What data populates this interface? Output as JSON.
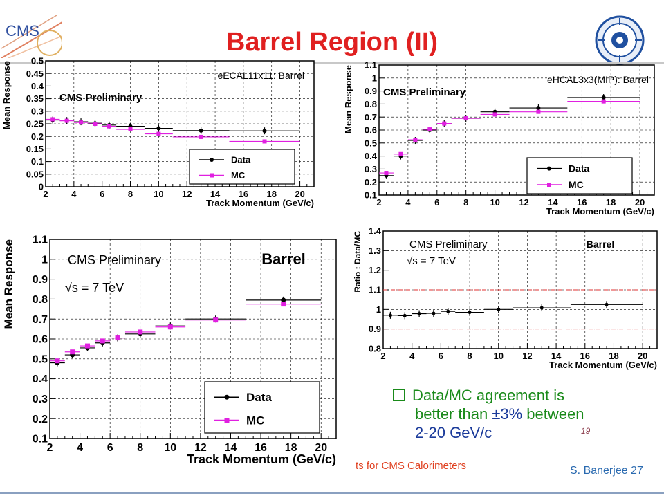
{
  "slide": {
    "title": "Barrel Region (II)",
    "logo_left_text": "CMS",
    "bullet": {
      "line1": "Data/MC agreement is",
      "line2_pre": "better than ",
      "line2_hl": "±3%",
      "line2_post": " between",
      "line3": "2-20 GeV/c"
    },
    "handwritten_note": "19",
    "footer_left": "ts for CMS Calorimeters",
    "footer_right": "S. Banerjee  27",
    "colors": {
      "title": "#e02020",
      "data": "#000000",
      "mc": "#e020e0",
      "ratio_band": "#e03030",
      "bullet": "#1a8a1a"
    }
  },
  "chart_data": [
    {
      "type": "scatter",
      "title": "eECAL11x11: Barrel",
      "subtitle": "CMS Preliminary",
      "xlabel": "Track Momentum (GeV/c)",
      "ylabel": "Mean Response",
      "xlim": [
        2,
        21
      ],
      "ylim": [
        0,
        0.5
      ],
      "xticks": [
        "2",
        "4",
        "6",
        "8",
        "10",
        "12",
        "14",
        "16",
        "18",
        "20"
      ],
      "yticks": [
        "0",
        "0.05",
        "0.1",
        "0.15",
        "0.2",
        "0.25",
        "0.3",
        "0.35",
        "0.4",
        "0.45",
        "0.5"
      ],
      "legend": [
        "Data",
        "MC"
      ],
      "legend_position": "bottom-right",
      "grid": true,
      "series": [
        {
          "name": "Data",
          "x": [
            2.5,
            3.5,
            4.5,
            5.5,
            6.5,
            8,
            10,
            13,
            17.5
          ],
          "xlo": [
            2,
            3,
            4,
            5,
            6,
            7,
            9,
            11,
            15
          ],
          "xhi": [
            3,
            4,
            5,
            6,
            7,
            9,
            11,
            15,
            20
          ],
          "y": [
            0.265,
            0.263,
            0.258,
            0.252,
            0.245,
            0.24,
            0.232,
            0.223,
            0.222
          ]
        },
        {
          "name": "MC",
          "x": [
            2.5,
            3.5,
            4.5,
            5.5,
            6.5,
            8,
            10,
            13,
            17.5
          ],
          "xlo": [
            2,
            3,
            4,
            5,
            6,
            7,
            9,
            11,
            15
          ],
          "xhi": [
            3,
            4,
            5,
            6,
            7,
            9,
            11,
            15,
            20
          ],
          "y": [
            0.268,
            0.262,
            0.255,
            0.25,
            0.24,
            0.228,
            0.21,
            0.198,
            0.18
          ]
        }
      ]
    },
    {
      "type": "scatter",
      "title": "eHCAL3x3(MIP): Barrel",
      "subtitle": "CMS Preliminary",
      "xlabel": "Track Momentum (GeV/c)",
      "ylabel": "Mean Response",
      "xlim": [
        2,
        21
      ],
      "ylim": [
        0.1,
        1.1
      ],
      "xticks": [
        "2",
        "4",
        "6",
        "8",
        "10",
        "12",
        "14",
        "16",
        "18",
        "20"
      ],
      "yticks": [
        "0.1",
        "0.2",
        "0.3",
        "0.4",
        "0.5",
        "0.6",
        "0.7",
        "0.8",
        "0.9",
        "1",
        "1.1"
      ],
      "legend": [
        "Data",
        "MC"
      ],
      "legend_position": "bottom-right",
      "grid": true,
      "series": [
        {
          "name": "Data",
          "x": [
            2.5,
            3.5,
            4.5,
            5.5,
            6.5,
            8,
            10,
            13,
            17.5
          ],
          "xlo": [
            2,
            3,
            4,
            5,
            6,
            7,
            9,
            11,
            15
          ],
          "xhi": [
            3,
            4,
            5,
            6,
            7,
            9,
            11,
            15,
            20
          ],
          "y": [
            0.25,
            0.4,
            0.52,
            0.6,
            0.65,
            0.69,
            0.74,
            0.77,
            0.85
          ]
        },
        {
          "name": "MC",
          "x": [
            2.5,
            3.5,
            4.5,
            5.5,
            6.5,
            8,
            10,
            13,
            17.5
          ],
          "xlo": [
            2,
            3,
            4,
            5,
            6,
            7,
            9,
            11,
            15
          ],
          "xhi": [
            3,
            4,
            5,
            6,
            7,
            9,
            11,
            15,
            20
          ],
          "y": [
            0.27,
            0.415,
            0.525,
            0.605,
            0.65,
            0.69,
            0.72,
            0.74,
            0.82
          ]
        }
      ]
    },
    {
      "type": "scatter",
      "title": "Barrel",
      "subtitle": "CMS Preliminary",
      "annotation": "√s = 7 TeV",
      "xlabel": "Track Momentum (GeV/c)",
      "ylabel": "Mean Response",
      "xlim": [
        2,
        21
      ],
      "ylim": [
        0.1,
        1.1
      ],
      "xticks": [
        "2",
        "4",
        "6",
        "8",
        "10",
        "12",
        "14",
        "16",
        "18",
        "20"
      ],
      "yticks": [
        "0.1",
        "0.2",
        "0.3",
        "0.4",
        "0.5",
        "0.6",
        "0.7",
        "0.8",
        "0.9",
        "1",
        "1.1"
      ],
      "legend": [
        "Data",
        "MC"
      ],
      "legend_position": "bottom-right",
      "grid": true,
      "series": [
        {
          "name": "Data",
          "x": [
            2.5,
            3.5,
            4.5,
            5.5,
            6.5,
            8,
            10,
            13,
            17.5
          ],
          "xlo": [
            2,
            3,
            4,
            5,
            6,
            7,
            9,
            11,
            15
          ],
          "xhi": [
            3,
            4,
            5,
            6,
            7,
            9,
            11,
            15,
            20
          ],
          "y": [
            0.48,
            0.52,
            0.555,
            0.58,
            0.605,
            0.625,
            0.665,
            0.7,
            0.795
          ]
        },
        {
          "name": "MC",
          "x": [
            2.5,
            3.5,
            4.5,
            5.5,
            6.5,
            8,
            10,
            13,
            17.5
          ],
          "xlo": [
            2,
            3,
            4,
            5,
            6,
            7,
            9,
            11,
            15
          ],
          "xhi": [
            3,
            4,
            5,
            6,
            7,
            9,
            11,
            15,
            20
          ],
          "y": [
            0.49,
            0.535,
            0.565,
            0.59,
            0.605,
            0.635,
            0.66,
            0.695,
            0.775
          ]
        }
      ]
    },
    {
      "type": "scatter",
      "title": "Barrel",
      "subtitle": "CMS Preliminary",
      "annotation": "√s = 7 TeV",
      "xlabel": "Track Momentum (GeV/c)",
      "ylabel": "Ratio : Data/MC",
      "xlim": [
        2,
        21
      ],
      "ylim": [
        0.8,
        1.4
      ],
      "xticks": [
        "2",
        "4",
        "6",
        "8",
        "10",
        "12",
        "14",
        "16",
        "18",
        "20"
      ],
      "yticks": [
        "0.8",
        "0.9",
        "1",
        "1.1",
        "1.2",
        "1.3",
        "1.4"
      ],
      "reference_lines": [
        0.9,
        1.1
      ],
      "grid": true,
      "series": [
        {
          "name": "Data/MC",
          "x": [
            2.5,
            3.5,
            4.5,
            5.5,
            6.5,
            8,
            10,
            13,
            17.5
          ],
          "xlo": [
            2,
            3,
            4,
            5,
            6,
            7,
            9,
            11,
            15
          ],
          "xhi": [
            3,
            4,
            5,
            6,
            7,
            9,
            11,
            15,
            20
          ],
          "y": [
            0.97,
            0.968,
            0.978,
            0.98,
            0.99,
            0.985,
            1.0,
            1.008,
            1.025
          ]
        }
      ]
    }
  ]
}
